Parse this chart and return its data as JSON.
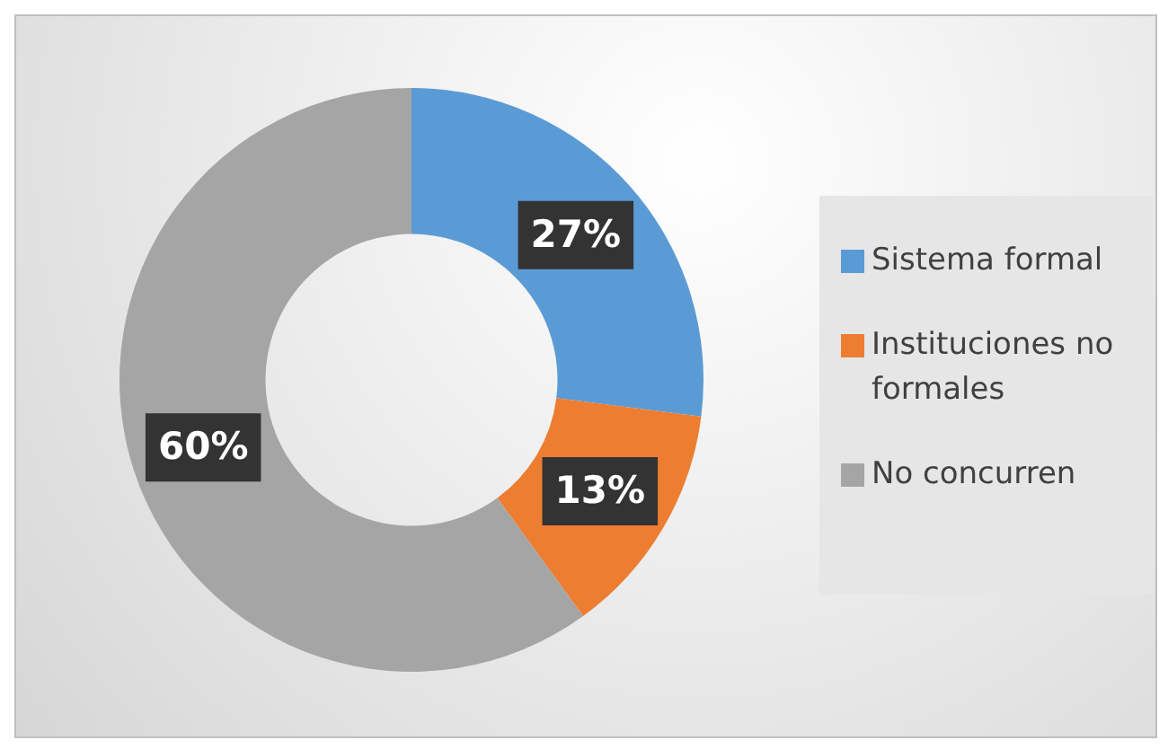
{
  "chart_data": {
    "type": "donut",
    "categories": [
      "Sistema formal",
      "Instituciones no formales",
      "No concurren"
    ],
    "values": [
      27,
      13,
      60
    ],
    "colors": [
      "#5b9bd5",
      "#ed7d31",
      "#a5a5a5"
    ],
    "value_labels": [
      "27%",
      "13%",
      "60%"
    ],
    "legend": "right"
  }
}
